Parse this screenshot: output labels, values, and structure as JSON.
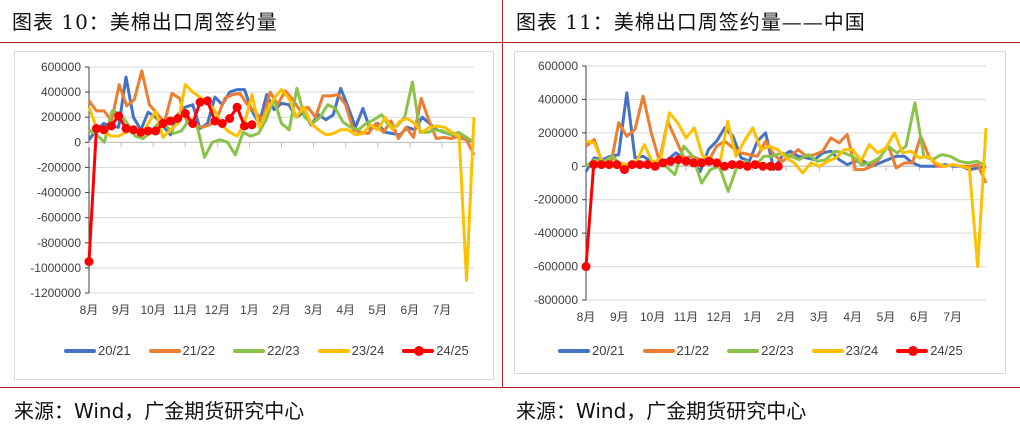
{
  "left": {
    "title": "图表 10：美棉出口周签约量",
    "source": "来源：Wind，广金期货研究中心"
  },
  "right": {
    "title": "图表 11：美棉出口周签约量——中国",
    "source": "来源：Wind，广金期货研究中心"
  },
  "colors": {
    "divider": "#b22222",
    "s2021": "#4472c4",
    "s2122": "#ed7d31",
    "s2223": "#8bc34a",
    "s2324": "#ffc000",
    "s2425": "#ff0000"
  },
  "chart_data": [
    {
      "type": "line",
      "title": "美棉出口周签约量",
      "xlabel": "",
      "ylabel": "",
      "ylim": [
        -1200000,
        600000
      ],
      "yticks": [
        600000,
        400000,
        200000,
        0,
        -200000,
        -400000,
        -600000,
        -800000,
        -1000000,
        -1200000
      ],
      "categories": [
        "8月",
        "9月",
        "10月",
        "11月",
        "12月",
        "1月",
        "2月",
        "3月",
        "4月",
        "5月",
        "6月",
        "7月"
      ],
      "grid": true,
      "legend_position": "bottom",
      "series": [
        {
          "name": "20/21",
          "values": [
            20000,
            100000,
            150000,
            130000,
            120000,
            520000,
            200000,
            100000,
            240000,
            200000,
            130000,
            60000,
            220000,
            280000,
            300000,
            110000,
            150000,
            360000,
            300000,
            400000,
            420000,
            420000,
            250000,
            150000,
            380000,
            260000,
            310000,
            300000,
            200000,
            240000,
            140000,
            220000,
            180000,
            220000,
            430000,
            280000,
            120000,
            270000,
            100000,
            150000,
            80000,
            70000,
            60000,
            120000,
            100000,
            200000,
            150000,
            100000,
            80000,
            60000,
            40000,
            20000,
            10000
          ]
        },
        {
          "name": "21/22",
          "values": [
            330000,
            250000,
            250000,
            170000,
            460000,
            290000,
            340000,
            570000,
            300000,
            230000,
            160000,
            390000,
            350000,
            160000,
            130000,
            120000,
            140000,
            200000,
            350000,
            380000,
            390000,
            300000,
            240000,
            180000,
            400000,
            300000,
            410000,
            340000,
            250000,
            280000,
            200000,
            370000,
            370000,
            380000,
            300000,
            100000,
            80000,
            70000,
            150000,
            80000,
            170000,
            30000,
            120000,
            40000,
            350000,
            180000,
            30000,
            40000,
            30000,
            50000,
            20000,
            -100000
          ]
        },
        {
          "name": "22/23",
          "values": [
            100000,
            60000,
            0,
            250000,
            230000,
            150000,
            50000,
            30000,
            80000,
            150000,
            130000,
            70000,
            90000,
            180000,
            140000,
            -120000,
            0,
            20000,
            0,
            -100000,
            80000,
            50000,
            70000,
            180000,
            350000,
            150000,
            100000,
            430000,
            200000,
            150000,
            200000,
            300000,
            270000,
            160000,
            120000,
            100000,
            150000,
            180000,
            220000,
            130000,
            130000,
            200000,
            480000,
            80000,
            80000,
            100000,
            90000,
            60000,
            80000,
            40000,
            0
          ]
        },
        {
          "name": "23/24",
          "values": [
            280000,
            120000,
            80000,
            50000,
            50000,
            80000,
            100000,
            60000,
            150000,
            250000,
            40000,
            100000,
            150000,
            460000,
            400000,
            360000,
            320000,
            250000,
            130000,
            80000,
            50000,
            150000,
            380000,
            120000,
            250000,
            350000,
            420000,
            350000,
            200000,
            280000,
            150000,
            100000,
            60000,
            70000,
            100000,
            100000,
            60000,
            70000,
            140000,
            100000,
            200000,
            100000,
            170000,
            190000,
            150000,
            80000,
            120000,
            130000,
            120000,
            80000,
            40000,
            -1100000,
            200000
          ]
        },
        {
          "name": "24/25",
          "values": [
            -950000,
            110000,
            100000,
            130000,
            210000,
            110000,
            100000,
            80000,
            90000,
            90000,
            150000,
            170000,
            190000,
            230000,
            150000,
            320000,
            330000,
            170000,
            150000,
            190000,
            280000,
            130000,
            140000
          ]
        }
      ]
    },
    {
      "type": "line",
      "title": "美棉出口周签约量——中国",
      "xlabel": "",
      "ylabel": "",
      "ylim": [
        -800000,
        600000
      ],
      "yticks": [
        600000,
        400000,
        200000,
        0,
        -200000,
        -400000,
        -600000,
        -800000
      ],
      "categories": [
        "8月",
        "9月",
        "10月",
        "11月",
        "12月",
        "1月",
        "2月",
        "3月",
        "4月",
        "5月",
        "6月",
        "7月"
      ],
      "grid": true,
      "legend_position": "bottom",
      "series": [
        {
          "name": "20/21",
          "values": [
            -30000,
            50000,
            40000,
            60000,
            70000,
            440000,
            50000,
            60000,
            30000,
            20000,
            40000,
            80000,
            50000,
            30000,
            -30000,
            100000,
            150000,
            230000,
            180000,
            50000,
            30000,
            150000,
            200000,
            -20000,
            60000,
            90000,
            60000,
            50000,
            40000,
            80000,
            90000,
            40000,
            10000,
            30000,
            30000,
            0,
            20000,
            40000,
            60000,
            60000,
            20000,
            0,
            0,
            0,
            10000,
            0,
            0,
            -20000,
            -10000,
            0
          ]
        },
        {
          "name": "21/22",
          "values": [
            120000,
            160000,
            20000,
            0,
            260000,
            180000,
            220000,
            420000,
            200000,
            30000,
            270000,
            160000,
            50000,
            60000,
            40000,
            30000,
            120000,
            150000,
            110000,
            80000,
            70000,
            60000,
            150000,
            70000,
            30000,
            60000,
            100000,
            60000,
            70000,
            90000,
            170000,
            140000,
            190000,
            -20000,
            -20000,
            0,
            50000,
            130000,
            -10000,
            20000,
            20000,
            180000,
            60000,
            0,
            0,
            10000,
            0,
            0,
            10000,
            -100000
          ]
        },
        {
          "name": "22/23",
          "values": [
            0,
            40000,
            30000,
            60000,
            0,
            10000,
            10000,
            0,
            20000,
            0,
            -50000,
            120000,
            60000,
            -100000,
            -20000,
            0,
            -150000,
            0,
            30000,
            0,
            60000,
            60000,
            80000,
            60000,
            40000,
            70000,
            30000,
            40000,
            90000,
            80000,
            60000,
            10000,
            20000,
            50000,
            120000,
            80000,
            120000,
            380000,
            60000,
            40000,
            70000,
            60000,
            30000,
            20000,
            30000,
            0
          ]
        },
        {
          "name": "23/24",
          "values": [
            150000,
            140000,
            20000,
            10000,
            20000,
            10000,
            20000,
            130000,
            20000,
            50000,
            320000,
            260000,
            170000,
            230000,
            60000,
            50000,
            0,
            270000,
            60000,
            150000,
            230000,
            100000,
            120000,
            100000,
            50000,
            20000,
            -40000,
            20000,
            0,
            30000,
            50000,
            100000,
            100000,
            30000,
            130000,
            80000,
            110000,
            200000,
            80000,
            90000,
            50000,
            60000,
            20000,
            0,
            10000,
            0,
            -10000,
            -600000,
            230000
          ]
        },
        {
          "name": "24/25",
          "values": [
            -600000,
            10000,
            10000,
            10000,
            10000,
            -20000,
            10000,
            10000,
            10000,
            0,
            20000,
            30000,
            40000,
            30000,
            20000,
            20000,
            30000,
            20000,
            0,
            10000,
            10000,
            0,
            10000,
            0,
            0,
            0
          ]
        }
      ]
    }
  ]
}
